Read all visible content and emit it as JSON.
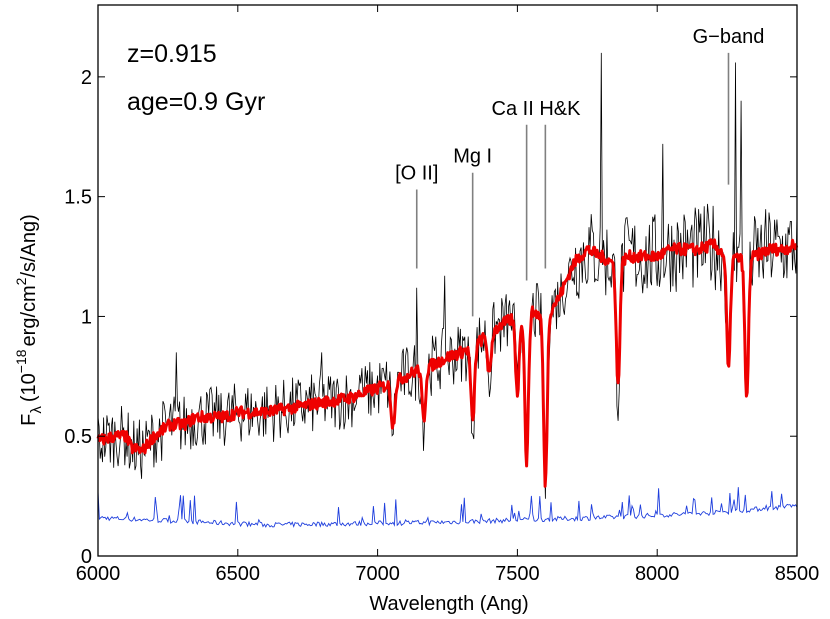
{
  "chart_data": {
    "type": "line",
    "title": "",
    "xlabel": "Wavelength (Ang)",
    "ylabel": {
      "symbol": "F",
      "subscript": "λ",
      "units_prefix": "(10",
      "exponent": "−18",
      "units_middle": "erg/cm",
      "units_exponent": "2",
      "units_suffix": "/s/Ang)"
    },
    "xlim": [
      6000,
      8500
    ],
    "ylim": [
      0,
      2.3
    ],
    "xticks": [
      6000,
      6500,
      7000,
      7500,
      8000,
      8500
    ],
    "xtick_labels": [
      "6000",
      "6500",
      "7000",
      "7500",
      "8000",
      "8500"
    ],
    "yticks": [
      0,
      0.5,
      1,
      1.5,
      2
    ],
    "ytick_labels": [
      "0",
      "0.5",
      "1",
      "1.5",
      "2"
    ],
    "text_annotations": [
      {
        "name": "redshift",
        "text": "z=0.915"
      },
      {
        "name": "age",
        "text": "age=0.9 Gyr"
      }
    ],
    "line_annotations": [
      {
        "label": "[O II]",
        "x": 7140,
        "y_top": 1.53,
        "y_bottom": 1.2
      },
      {
        "label": "Mg I",
        "x": 7340,
        "y_top": 1.6,
        "y_bottom": 1.0
      },
      {
        "label": "Ca II H&K",
        "x": 7533,
        "y_top": 1.8,
        "y_bottom": 1.15
      },
      {
        "label": "Ca II H&K",
        "x": 7600,
        "y_top": 1.8,
        "y_bottom": 1.2
      },
      {
        "label": "G−band",
        "x": 8255,
        "y_top": 2.1,
        "y_bottom": 1.55
      }
    ],
    "series": [
      {
        "name": "observed spectrum",
        "color": "#000000",
        "type": "noisy",
        "noise_amplitude": 0.13,
        "spike_x": [
          6280,
          6330,
          6440,
          6800,
          6940,
          7140,
          7240,
          7570,
          7800,
          7830,
          7870,
          8020,
          8280,
          8300
        ],
        "spike_y": [
          0.85,
          0.88,
          0.68,
          0.85,
          0.72,
          1.12,
          1.17,
          1.23,
          2.1,
          1.85,
          2.1,
          1.72,
          2.06,
          1.9
        ]
      },
      {
        "name": "best-fit model (age=0.9 Gyr)",
        "color": "#ee0000",
        "type": "smooth",
        "x": [
          6000,
          6060,
          6100,
          6120,
          6160,
          6200,
          6260,
          6310,
          6350,
          6400,
          6450,
          6500,
          6550,
          6600,
          6650,
          6700,
          6750,
          6800,
          6850,
          6900,
          6950,
          7000,
          7050,
          7100,
          7150,
          7200,
          7250,
          7300,
          7350,
          7400,
          7450,
          7500,
          7550,
          7600,
          7650,
          7700,
          7750,
          7800,
          7850,
          7900,
          7950,
          8000,
          8050,
          8100,
          8150,
          8200,
          8250,
          8300,
          8350,
          8400,
          8450,
          8500
        ],
        "y": [
          0.48,
          0.5,
          0.5,
          0.45,
          0.44,
          0.5,
          0.55,
          0.55,
          0.58,
          0.58,
          0.58,
          0.6,
          0.6,
          0.6,
          0.61,
          0.62,
          0.63,
          0.64,
          0.65,
          0.66,
          0.68,
          0.7,
          0.72,
          0.75,
          0.78,
          0.8,
          0.83,
          0.85,
          0.88,
          0.93,
          0.97,
          1.0,
          1.02,
          1.0,
          1.08,
          1.22,
          1.28,
          1.25,
          1.22,
          1.25,
          1.25,
          1.25,
          1.28,
          1.28,
          1.28,
          1.3,
          1.25,
          1.24,
          1.25,
          1.28,
          1.28,
          1.3
        ],
        "absorption_x": [
          7055,
          7165,
          7340,
          7400,
          7500,
          7533,
          7600,
          7860,
          8255,
          8320
        ],
        "absorption_depth": [
          0.18,
          0.22,
          0.32,
          0.18,
          0.32,
          0.62,
          0.7,
          0.52,
          0.48,
          0.6
        ]
      },
      {
        "name": "noise spectrum",
        "color": "#1f3fdd",
        "type": "noise",
        "baseline": [
          [
            6000,
            0.15
          ],
          [
            6600,
            0.12
          ],
          [
            7200,
            0.13
          ],
          [
            7800,
            0.15
          ],
          [
            8200,
            0.17
          ],
          [
            8500,
            0.2
          ]
        ]
      }
    ],
    "grid": false,
    "legend": "none"
  }
}
